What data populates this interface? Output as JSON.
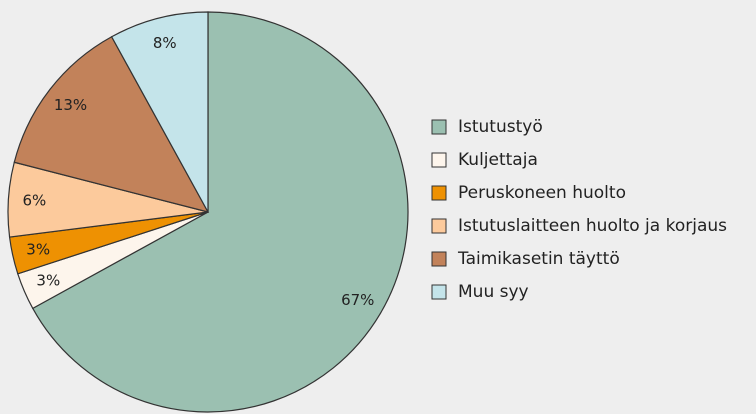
{
  "chart_data": {
    "type": "pie",
    "categories": [
      "Istutustyö",
      "Kuljettaja",
      "Peruskoneen huolto",
      "Istutuslaitteen huolto ja korjaus",
      "Taimikasetin täyttö",
      "Muu syy"
    ],
    "values": [
      67,
      3,
      3,
      6,
      13,
      8
    ],
    "value_labels": [
      "67%",
      "3%",
      "3%",
      "6%",
      "13%",
      "8%"
    ],
    "colors": [
      "#9bc0b1",
      "#fdf5ec",
      "#ee9102",
      "#fcca9c",
      "#c2825a",
      "#c4e4ea"
    ]
  }
}
